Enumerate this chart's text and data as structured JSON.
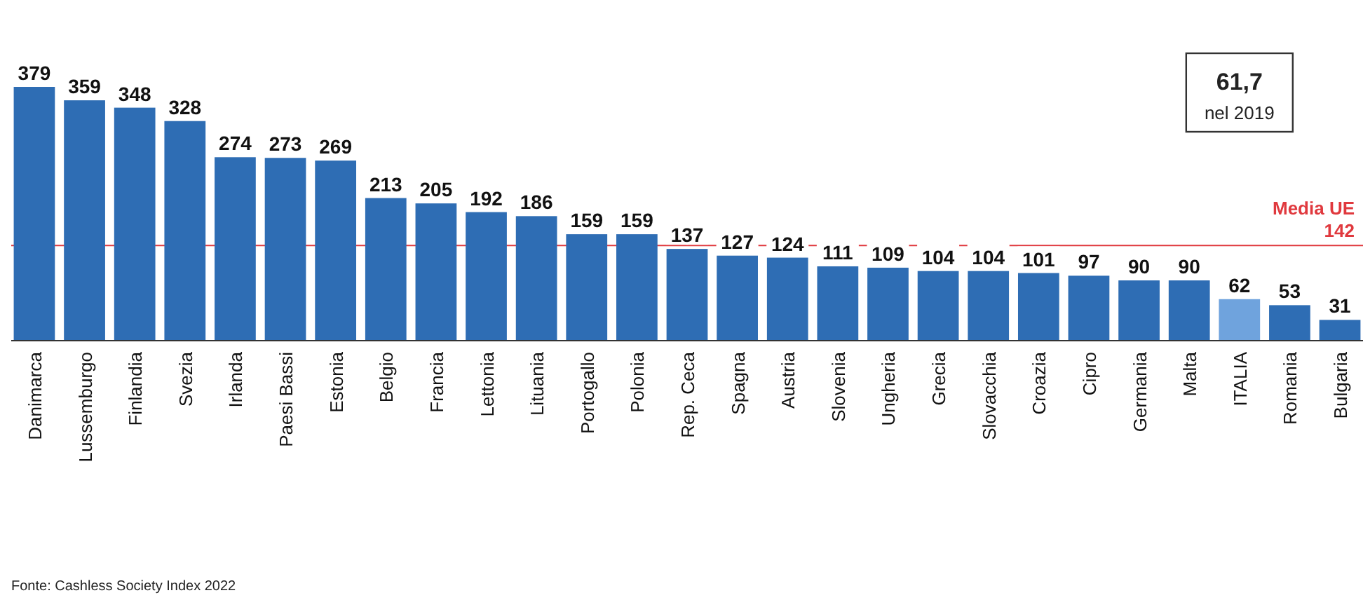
{
  "chart_data": {
    "type": "bar",
    "categories": [
      "Danimarca",
      "Lussemburgo",
      "Finlandia",
      "Svezia",
      "Irlanda",
      "Paesi Bassi",
      "Estonia",
      "Belgio",
      "Francia",
      "Lettonia",
      "Lituania",
      "Portogallo",
      "Polonia",
      "Rep. Ceca",
      "Spagna",
      "Austria",
      "Slovenia",
      "Ungheria",
      "Grecia",
      "Slovacchia",
      "Croazia",
      "Cipro",
      "Germania",
      "Malta",
      "ITALIA",
      "Romania",
      "Bulgaria"
    ],
    "values": [
      379,
      359,
      348,
      328,
      274,
      273,
      269,
      213,
      205,
      192,
      186,
      159,
      159,
      137,
      127,
      124,
      111,
      109,
      104,
      104,
      101,
      97,
      90,
      90,
      62,
      53,
      31
    ],
    "colors": [
      "#2e6db4",
      "#2e6db4",
      "#2e6db4",
      "#2e6db4",
      "#2e6db4",
      "#2e6db4",
      "#2e6db4",
      "#2e6db4",
      "#2e6db4",
      "#2e6db4",
      "#2e6db4",
      "#2e6db4",
      "#2e6db4",
      "#2e6db4",
      "#2e6db4",
      "#2e6db4",
      "#2e6db4",
      "#2e6db4",
      "#2e6db4",
      "#2e6db4",
      "#2e6db4",
      "#2e6db4",
      "#2e6db4",
      "#2e6db4",
      "#6fa3dd",
      "#2e6db4",
      "#2e6db4"
    ],
    "data_labels": true,
    "ref_lines": [
      {
        "axis": "y",
        "value": 142,
        "label": "Media UE 142",
        "color": "#e0393e"
      }
    ],
    "annotations": [
      "61,7",
      "nel 2019",
      "Fonte: Cashless Society Index 2022"
    ]
  }
}
